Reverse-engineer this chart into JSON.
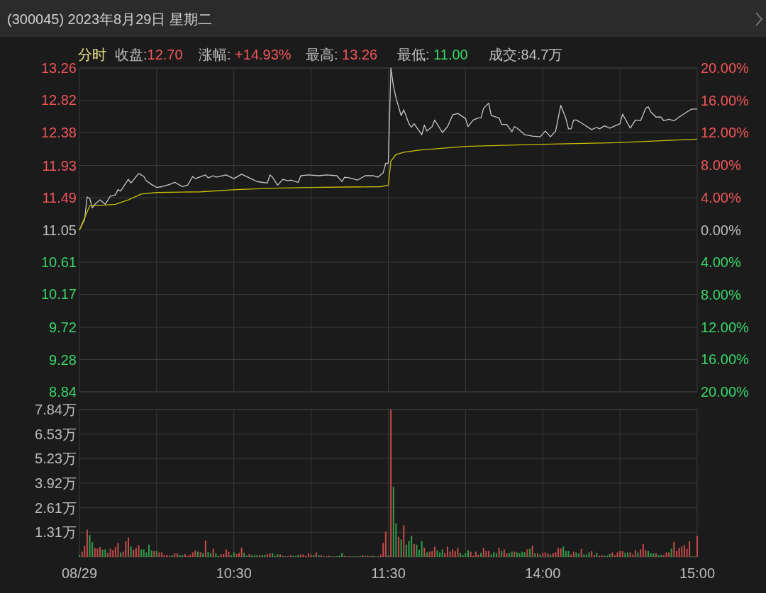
{
  "chart_data": [
    {
      "type": "line",
      "title": "(300045) 2023年8月29日 星期二",
      "annotations": [
        "分时",
        "收盘:12.70",
        "涨幅: +14.93%",
        "最高: 13.26",
        "最低: 11.00",
        "成交:84.7万"
      ],
      "categories": [
        null,
        null,
        null,
        null,
        null,
        null,
        null,
        null,
        null,
        null,
        null,
        null,
        null,
        null,
        null,
        null,
        null,
        null,
        null,
        null,
        null,
        null,
        null,
        null,
        null,
        null,
        null,
        null,
        null,
        null,
        null,
        null,
        null,
        null,
        null,
        null,
        null,
        null,
        null,
        null,
        null,
        null,
        null,
        null,
        null,
        null,
        null,
        null,
        null,
        null,
        null,
        null,
        null,
        null,
        null,
        null,
        null,
        null,
        null,
        null,
        null,
        null,
        null,
        null,
        null,
        null,
        null,
        null,
        null,
        null,
        null,
        null,
        null,
        null,
        null,
        null,
        null,
        null,
        null,
        null,
        null,
        null,
        null,
        null,
        null,
        null,
        null,
        null,
        null,
        null,
        null,
        null,
        null,
        null,
        null,
        null,
        null,
        null,
        null,
        null,
        null,
        null,
        null,
        null,
        null,
        null,
        null,
        null,
        null,
        null,
        null,
        null,
        null,
        null,
        null,
        null,
        null,
        null,
        null,
        null,
        null,
        null,
        null,
        null,
        null,
        null,
        null,
        null,
        null,
        null,
        null,
        null,
        null,
        null,
        null,
        null,
        null,
        null,
        null,
        null,
        null,
        null,
        null,
        null,
        null,
        null,
        null,
        null,
        null,
        null,
        null,
        null,
        null,
        null,
        null,
        null,
        null,
        null,
        null,
        null,
        null,
        null,
        null,
        null,
        null,
        null,
        null,
        null,
        null,
        null,
        null,
        null,
        null,
        null,
        null,
        null,
        null,
        null,
        null,
        null,
        null,
        null,
        null,
        null,
        null,
        null,
        null,
        null,
        null,
        null,
        null,
        null,
        null,
        null,
        null,
        null,
        null,
        null,
        null,
        null,
        null,
        null,
        null,
        null,
        null,
        null,
        null,
        null,
        null,
        null,
        null,
        null,
        null,
        null,
        null,
        null,
        null,
        null,
        null,
        null,
        null,
        null,
        null,
        null,
        null,
        null,
        null,
        null,
        null,
        null,
        null,
        null,
        null,
        null,
        null,
        null,
        null,
        null,
        null,
        null,
        null
      ],
      "ylim": [
        8.84,
        13.26
      ],
      "yticks": [
        8.84,
        9.28,
        9.72,
        10.17,
        10.61,
        11.05,
        11.49,
        11.93,
        12.38,
        12.82,
        13.26
      ],
      "y2lim": [
        -20,
        20
      ],
      "y2ticks": [
        {
          "value": -20,
          "label": "20.00%"
        },
        {
          "value": -16,
          "label": "16.00%"
        },
        {
          "value": -12,
          "label": "12.00%"
        },
        {
          "value": -8,
          "label": "8.00%"
        },
        {
          "value": -4,
          "label": "4.00%"
        },
        {
          "value": 0,
          "label": "0.00%"
        },
        {
          "value": 4,
          "label": "4.00%"
        },
        {
          "value": 8,
          "label": "8.00%"
        },
        {
          "value": 12,
          "label": "12.00%"
        },
        {
          "value": 16,
          "label": "16.00%"
        },
        {
          "value": 20,
          "label": "20.00%"
        }
      ],
      "tick_labels": "y",
      "grid": true,
      "marker": "none",
      "line_style": "solid",
      "series": [
        {
          "color": "#c8c8c8",
          "values": [
            11.05,
            null,
            11.19,
            11.5,
            11.48,
            11.35,
            11.4,
            null,
            11.46,
            null,
            11.4,
            null,
            11.51,
            null,
            11.53,
            11.6,
            11.58,
            null,
            null,
            11.74,
            11.69,
            null,
            null,
            11.82,
            null,
            11.78,
            11.72,
            null,
            11.67,
            null,
            11.63,
            null,
            11.64,
            null,
            null,
            11.67,
            null,
            11.7,
            null,
            null,
            11.64,
            null,
            11.66,
            null,
            11.78,
            11.75,
            null,
            null,
            null,
            11.8,
            11.76,
            null,
            11.79,
            11.77,
            null,
            null,
            null,
            11.8,
            null,
            null,
            11.75,
            null,
            null,
            11.81,
            null,
            null,
            11.76,
            null,
            null,
            11.71,
            null,
            null,
            null,
            11.69,
            11.8,
            11.77,
            null,
            11.66,
            null,
            11.74,
            null,
            11.72,
            11.73,
            null,
            null,
            11.7,
            11.79,
            null,
            null,
            11.8,
            null,
            null,
            null,
            11.79,
            null,
            null,
            11.8,
            null,
            null,
            null,
            11.79,
            null,
            11.71,
            11.77,
            null,
            11.76,
            null,
            null,
            11.73,
            null,
            null,
            11.79,
            null,
            null,
            11.79,
            null,
            11.77,
            null,
            11.83,
            11.96,
            11.96,
            13.26,
            13.01,
            12.85,
            null,
            12.61,
            12.69,
            null,
            12.5,
            12.45,
            12.5,
            null,
            null,
            12.35,
            12.48,
            12.4,
            null,
            12.46,
            12.55,
            null,
            null,
            12.38,
            null,
            12.46,
            null,
            12.62,
            null,
            12.64,
            null,
            null,
            12.57,
            12.46,
            null,
            12.55,
            null,
            12.58,
            12.58,
            12.71,
            null,
            12.78,
            12.61,
            null,
            null,
            12.58,
            12.49,
            null,
            12.49,
            null,
            12.39,
            12.46,
            12.44,
            null,
            null,
            12.35,
            null,
            null,
            12.33,
            null,
            null,
            12.32,
            null,
            12.4,
            null,
            12.32,
            null,
            12.4,
            null,
            12.75,
            null,
            12.57,
            12.43,
            12.43,
            12.55,
            12.55,
            null,
            12.51,
            null,
            null,
            null,
            12.42,
            null,
            12.45,
            12.43,
            null,
            12.47,
            null,
            12.44,
            null,
            null,
            null,
            12.5,
            12.63,
            null,
            null,
            12.44,
            null,
            12.55,
            null,
            12.54,
            null,
            12.71,
            12.73,
            12.66,
            null,
            12.59,
            null,
            12.59,
            12.54,
            null,
            12.56,
            null,
            12.54,
            null,
            12.59,
            null,
            null,
            12.66,
            null,
            12.7,
            null,
            12.7
          ]
        },
        {
          "color": "#c8c000",
          "values": [
            11.05,
            null,
            null,
            null,
            11.38,
            null,
            null,
            null,
            null,
            null,
            11.39,
            null,
            null,
            null,
            11.4,
            null,
            null,
            null,
            null,
            11.46,
            null,
            null,
            null,
            null,
            11.54,
            null,
            null,
            null,
            null,
            null,
            11.56,
            null,
            null,
            null,
            null,
            null,
            null,
            null,
            null,
            null,
            null,
            null,
            null,
            null,
            null,
            null,
            null,
            11.57,
            null,
            null,
            null,
            null,
            null,
            null,
            null,
            null,
            null,
            null,
            null,
            null,
            null,
            11.6,
            null,
            null,
            null,
            null,
            null,
            null,
            null,
            null,
            null,
            null,
            null,
            null,
            null,
            11.62,
            null,
            null,
            null,
            null,
            null,
            null,
            null,
            null,
            null,
            null,
            null,
            null,
            null,
            11.63,
            null,
            null,
            null,
            null,
            null,
            null,
            null,
            null,
            null,
            null,
            null,
            null,
            null,
            null,
            null,
            null,
            null,
            null,
            null,
            null,
            null,
            null,
            null,
            null,
            null,
            null,
            null,
            11.64,
            null,
            null,
            11.66,
            11.99,
            null,
            12.08,
            null,
            null,
            12.11,
            null,
            null,
            null,
            null,
            null,
            12.14,
            null,
            null,
            null,
            null,
            null,
            null,
            null,
            null,
            null,
            null,
            null,
            null,
            null,
            null,
            null,
            null,
            null,
            12.19,
            null,
            null,
            null,
            null,
            null,
            null,
            null,
            null,
            null,
            null,
            null,
            null,
            null,
            null,
            null,
            null,
            null,
            null,
            null,
            null,
            null,
            null,
            null,
            null,
            null,
            null,
            null,
            null,
            null,
            12.22,
            null,
            null,
            null,
            null,
            null,
            null,
            null,
            null,
            null,
            null,
            null,
            null,
            null,
            null,
            null,
            null,
            null,
            null,
            null,
            null,
            null,
            null,
            null,
            null,
            null,
            null,
            null,
            null,
            12.24,
            null,
            null,
            null,
            null,
            null,
            null,
            null,
            null,
            null,
            null,
            null,
            null,
            null,
            null,
            null,
            null,
            null,
            null,
            null,
            null,
            null,
            null,
            null,
            null,
            null,
            null,
            null,
            null,
            null,
            null,
            12.29
          ]
        }
      ]
    },
    {
      "type": "bar",
      "categories": [
        "08/29",
        null,
        null,
        null,
        null,
        null,
        null,
        null,
        null,
        null,
        null,
        null,
        null,
        null,
        null,
        null,
        null,
        null,
        null,
        null,
        null,
        null,
        null,
        null,
        null,
        null,
        null,
        null,
        null,
        null,
        null,
        null,
        null,
        null,
        null,
        null,
        null,
        null,
        null,
        null,
        null,
        null,
        null,
        null,
        null,
        null,
        null,
        null,
        null,
        null,
        null,
        null,
        null,
        null,
        null,
        null,
        null,
        null,
        null,
        null,
        "10:30",
        null,
        null,
        null,
        null,
        null,
        null,
        null,
        null,
        null,
        null,
        null,
        null,
        null,
        null,
        null,
        null,
        null,
        null,
        null,
        null,
        null,
        null,
        null,
        null,
        null,
        null,
        null,
        null,
        null,
        null,
        null,
        null,
        null,
        null,
        null,
        null,
        null,
        null,
        null,
        null,
        null,
        null,
        null,
        null,
        null,
        null,
        null,
        null,
        null,
        null,
        null,
        null,
        null,
        null,
        null,
        null,
        null,
        null,
        null,
        "11:30",
        null,
        null,
        null,
        null,
        null,
        null,
        null,
        null,
        null,
        null,
        null,
        null,
        null,
        null,
        null,
        null,
        null,
        null,
        null,
        null,
        null,
        null,
        null,
        null,
        null,
        null,
        null,
        null,
        null,
        null,
        null,
        null,
        null,
        null,
        null,
        null,
        null,
        null,
        null,
        null,
        null,
        null,
        null,
        null,
        null,
        null,
        null,
        null,
        null,
        null,
        null,
        null,
        null,
        null,
        null,
        null,
        null,
        null,
        null,
        "14:00",
        null,
        null,
        null,
        null,
        null,
        null,
        null,
        null,
        null,
        null,
        null,
        null,
        null,
        null,
        null,
        null,
        null,
        null,
        null,
        null,
        null,
        null,
        null,
        null,
        null,
        null,
        null,
        null,
        null,
        null,
        null,
        null,
        null,
        null,
        null,
        null,
        null,
        null,
        null,
        null,
        null,
        null,
        null,
        null,
        null,
        null,
        null,
        null,
        null,
        null,
        null,
        null,
        null,
        null,
        null,
        null,
        null,
        null,
        null,
        "15:00"
      ],
      "ylim": [
        0,
        7.84
      ],
      "yticks": [
        {
          "value": 1.31,
          "label": "1.31万"
        },
        {
          "value": 2.61,
          "label": "2.61万"
        },
        {
          "value": 3.92,
          "label": "3.92万"
        },
        {
          "value": 5.23,
          "label": "5.23万"
        },
        {
          "value": 6.53,
          "label": "6.53万"
        },
        {
          "value": 7.84,
          "label": "7.84万"
        }
      ],
      "grid": true,
      "values": [
        0.09,
        0.28,
        0.59,
        1.45,
        1.16,
        0.78,
        0.47,
        0.44,
        0.53,
        0.38,
        0.4,
        0.21,
        0.44,
        0.36,
        0.53,
        0.74,
        0.24,
        0.28,
        0.82,
        1.03,
        0.55,
        0.38,
        0.47,
        0.63,
        0.4,
        0.4,
        0.24,
        0.65,
        0.34,
        0.31,
        0.31,
        0.24,
        0.24,
        0.09,
        0.11,
        0.06,
        0.09,
        0.19,
        0.18,
        0.11,
        0.09,
        0.15,
        0.06,
        0.11,
        0.24,
        0.34,
        0.28,
        0.26,
        0.19,
        0.87,
        0.26,
        0.19,
        0.44,
        0.18,
        0.06,
        0.13,
        0.15,
        0.4,
        0.28,
        0.09,
        0.24,
        0.15,
        0.21,
        0.49,
        0.21,
        0.06,
        0.15,
        0.09,
        0.09,
        0.09,
        0.09,
        0.11,
        0.11,
        0.15,
        0.19,
        0.19,
        0.06,
        0.14,
        0.13,
        0.06,
        0.03,
        0.03,
        0.09,
        0.05,
        0.05,
        0.11,
        0.13,
        0.13,
        0.06,
        0.19,
        0.13,
        0.11,
        0.24,
        0.09,
        0.09,
        0.03,
        0.03,
        0.06,
        0.03,
        0.03,
        0.03,
        0.06,
        0.2,
        0.05,
        0.03,
        0.03,
        0.03,
        0.03,
        0.03,
        0.03,
        0.09,
        0.05,
        0.06,
        0.03,
        0.06,
        0.03,
        0.03,
        0.13,
        0.74,
        1.35,
        0.09,
        7.84,
        3.73,
        1.78,
        1.07,
        0.93,
        1.68,
        0.65,
        0.84,
        1.12,
        0.68,
        0.65,
        0.38,
        0.84,
        0.49,
        0.24,
        0.28,
        0.3,
        0.55,
        0.34,
        0.24,
        0.4,
        0.21,
        0.55,
        0.28,
        0.4,
        0.3,
        0.47,
        0.21,
        0.09,
        0.19,
        0.36,
        0.28,
        0.06,
        0.28,
        0.11,
        0.21,
        0.47,
        0.3,
        0.31,
        0.13,
        0.25,
        0.19,
        0.47,
        0.31,
        0.4,
        0.19,
        0.19,
        0.28,
        0.28,
        0.24,
        0.19,
        0.28,
        0.25,
        0.4,
        0.43,
        0.59,
        0.19,
        0.19,
        0.13,
        0.21,
        0.24,
        0.19,
        0.13,
        0.19,
        0.25,
        0.47,
        0.44,
        0.55,
        0.3,
        0.31,
        0.13,
        0.28,
        0.24,
        0.18,
        0.43,
        0.13,
        0.13,
        0.24,
        0.3,
        0.11,
        0.21,
        0.06,
        0.09,
        0.05,
        0.06,
        0.15,
        0.24,
        0.09,
        0.24,
        0.3,
        0.3,
        0.21,
        0.24,
        0.25,
        0.13,
        0.36,
        0.24,
        0.4,
        0.68,
        0.36,
        0.31,
        0.19,
        0.18,
        0.19,
        0.09,
        0.11,
        0.09,
        0.24,
        0.24,
        0.44,
        0.8,
        0.31,
        0.47,
        0.55,
        0.63,
        0.43,
        0.82,
        0.03,
        0.03,
        1.12
      ],
      "colors": [
        "#2e9e48",
        "#c84a4a",
        "#c84a4a",
        "#c84a4a",
        "#2e9e48",
        "#2e9e48",
        "#c84a4a",
        "#c84a4a",
        "#c84a4a",
        "#2e9e48",
        "#2e9e48",
        "#c84a4a",
        "#c84a4a",
        "#c84a4a",
        "#c84a4a",
        "#c84a4a",
        "#2e9e48",
        "#c84a4a",
        "#c84a4a",
        "#c84a4a",
        "#2e9e48",
        "#c84a4a",
        "#c84a4a",
        "#c84a4a",
        "#2e9e48",
        "#2e9e48",
        "#2e9e48",
        "#2e9e48",
        "#2e9e48",
        "#c84a4a",
        "#2e9e48",
        "#c84a4a",
        "#c84a4a",
        "#c84a4a",
        "#c84a4a",
        "#c84a4a",
        "#2e9e48",
        "#c84a4a",
        "#c84a4a",
        "#2e9e48",
        "#2e9e48",
        "#c84a4a",
        "#c84a4a",
        "#c84a4a",
        "#c84a4a",
        "#c84a4a",
        "#2e9e48",
        "#c84a4a",
        "#2e9e48",
        "#c84a4a",
        "#2e9e48",
        "#2e9e48",
        "#c84a4a",
        "#2e9e48",
        "#2e9e48",
        "#c84a4a",
        "#c84a4a",
        "#c84a4a",
        "#c84a4a",
        "#2e9e48",
        "#2e9e48",
        "#c84a4a",
        "#c84a4a",
        "#c84a4a",
        "#2e9e48",
        "#2e9e48",
        "#c84a4a",
        "#2e9e48",
        "#2e9e48",
        "#2e9e48",
        "#c84a4a",
        "#2e9e48",
        "#2e9e48",
        "#c84a4a",
        "#c84a4a",
        "#2e9e48",
        "#2e9e48",
        "#2e9e48",
        "#c84a4a",
        "#c84a4a",
        "#2e9e48",
        "#c84a4a",
        "#c84a4a",
        "#2e9e48",
        "#2e9e48",
        "#2e9e48",
        "#c84a4a",
        "#c84a4a",
        "#c84a4a",
        "#c84a4a",
        "#c84a4a",
        "#2e9e48",
        "#c84a4a",
        "#2e9e48",
        "#c84a4a",
        "#2e9e48",
        "#c84a4a",
        "#c84a4a",
        "#2e9e48",
        "#c84a4a",
        "#2e9e48",
        "#2e9e48",
        "#2e9e48",
        "#c84a4a",
        "#2e9e48",
        "#c84a4a",
        "#2e9e48",
        "#2e9e48",
        "#2e9e48",
        "#2e9e48",
        "#c84a4a",
        "#2e9e48",
        "#c84a4a",
        "#2e9e48",
        "#2e9e48",
        "#c84a4a",
        "#2e9e48",
        "#c84a4a",
        "#c84a4a",
        "#c84a4a",
        "#2e9e48",
        "#c84a4a",
        "#2e9e48",
        "#2e9e48",
        "#c84a4a",
        "#2e9e48",
        "#c84a4a",
        "#2e9e48",
        "#2e9e48",
        "#2e9e48",
        "#c84a4a",
        "#2e9e48",
        "#2e9e48",
        "#2e9e48",
        "#c84a4a",
        "#2e9e48",
        "#c84a4a",
        "#c84a4a",
        "#c84a4a",
        "#2e9e48",
        "#2e9e48",
        "#2e9e48",
        "#c84a4a",
        "#c84a4a",
        "#c84a4a",
        "#c84a4a",
        "#c84a4a",
        "#c84a4a",
        "#2e9e48",
        "#2e9e48",
        "#2e9e48",
        "#2e9e48",
        "#c84a4a",
        "#c84a4a",
        "#c84a4a",
        "#c84a4a",
        "#2e9e48",
        "#c84a4a",
        "#c84a4a",
        "#c84a4a",
        "#2e9e48",
        "#2e9e48",
        "#2e9e48",
        "#c84a4a",
        "#2e9e48",
        "#c84a4a",
        "#c84a4a",
        "#2e9e48",
        "#2e9e48",
        "#c84a4a",
        "#2e9e48",
        "#2e9e48",
        "#2e9e48",
        "#2e9e48",
        "#c84a4a",
        "#2e9e48",
        "#c84a4a",
        "#2e9e48",
        "#c84a4a",
        "#2e9e48",
        "#c84a4a",
        "#c84a4a",
        "#c84a4a",
        "#2e9e48",
        "#c84a4a",
        "#c84a4a",
        "#c84a4a",
        "#c84a4a",
        "#2e9e48",
        "#2e9e48",
        "#2e9e48",
        "#c84a4a",
        "#c84a4a",
        "#2e9e48",
        "#2e9e48",
        "#c84a4a",
        "#2e9e48",
        "#2e9e48",
        "#2e9e48",
        "#c84a4a",
        "#c84a4a",
        "#2e9e48",
        "#c84a4a",
        "#c84a4a",
        "#2e9e48",
        "#2e9e48",
        "#2e9e48",
        "#c84a4a",
        "#c84a4a",
        "#c84a4a",
        "#c84a4a",
        "#c84a4a",
        "#2e9e48",
        "#2e9e48",
        "#c84a4a",
        "#c84a4a",
        "#c84a4a",
        "#2e9e48",
        "#c84a4a",
        "#c84a4a",
        "#c84a4a",
        "#2e9e48",
        "#2e9e48",
        "#2e9e48",
        "#c84a4a",
        "#2e9e48",
        "#2e9e48",
        "#c84a4a",
        "#c84a4a",
        "#c84a4a",
        "#2e9e48",
        "#c84a4a",
        "#c84a4a",
        "#c84a4a",
        "#c84a4a",
        "#c84a4a",
        "#c84a4a",
        "#c84a4a",
        "#2e9e48",
        "#2e9e48",
        "#c84a4a"
      ]
    }
  ]
}
